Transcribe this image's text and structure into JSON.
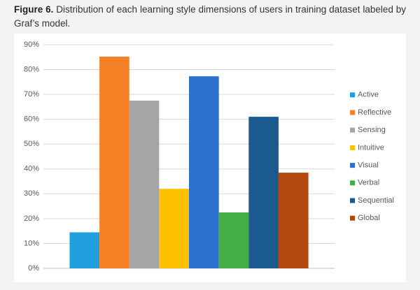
{
  "chart_data": {
    "type": "bar",
    "figure_label": "Figure 6.",
    "title": "Distribution of each learning style dimensions of users in training dataset labeled by Graf’s model.",
    "categories": [
      null
    ],
    "series": [
      {
        "name": "Active",
        "color": "#1f9fdb",
        "values": [
          14.5
        ]
      },
      {
        "name": "Reflective",
        "color": "#f58025",
        "values": [
          85.2
        ]
      },
      {
        "name": "Sensing",
        "color": "#a5a5a5",
        "values": [
          67.5
        ]
      },
      {
        "name": "Intuitive",
        "color": "#ffc000",
        "values": [
          32
        ]
      },
      {
        "name": "Visual",
        "color": "#2a72cc",
        "values": [
          77.3
        ]
      },
      {
        "name": "Verbal",
        "color": "#45ad45",
        "values": [
          22.5
        ]
      },
      {
        "name": "Sequential",
        "color": "#1b5a8e",
        "values": [
          61
        ]
      },
      {
        "name": "Global",
        "color": "#b3470c",
        "values": [
          38.5
        ]
      }
    ],
    "ylim": [
      0,
      90
    ],
    "yticks": [
      {
        "value": 0,
        "label": "0%"
      },
      {
        "value": 10,
        "label": "10%"
      },
      {
        "value": 20,
        "label": "20%"
      },
      {
        "value": 30,
        "label": "30%"
      },
      {
        "value": 40,
        "label": "40%"
      },
      {
        "value": 50,
        "label": "50%"
      },
      {
        "value": 60,
        "label": "60%"
      },
      {
        "value": 70,
        "label": "70%"
      },
      {
        "value": 80,
        "label": "80%"
      },
      {
        "value": 90,
        "label": "90%"
      }
    ],
    "grid": true,
    "legend": "right"
  }
}
